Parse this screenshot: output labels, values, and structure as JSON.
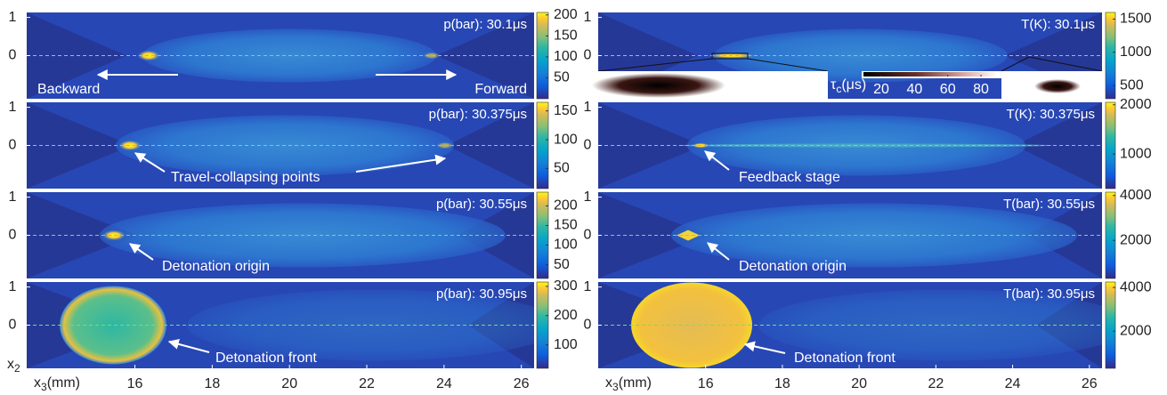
{
  "x_axis": {
    "label": {
      "base": "x",
      "sub": "3",
      "unit": "(mm)"
    },
    "ticks": [
      16,
      18,
      20,
      22,
      24,
      26
    ],
    "lim": [
      13.2,
      26.33
    ]
  },
  "y_axis": {
    "label": {
      "base": "x",
      "sub": "2"
    },
    "ticks": [
      0,
      1
    ],
    "lim": [
      -1.13,
      1.13
    ]
  },
  "left_column": [
    {
      "label": "p(bar): 30.1μs",
      "colorbar": {
        "ticks": [
          50,
          100,
          150,
          200
        ],
        "lim": [
          0,
          206
        ]
      },
      "annotations": [
        "Backward",
        "Forward"
      ]
    },
    {
      "label": "p(bar): 30.375μs",
      "colorbar": {
        "ticks": [
          50,
          100,
          150
        ],
        "lim": [
          15,
          165
        ]
      },
      "annotations": [
        "Travel-collapsing points"
      ]
    },
    {
      "label": "p(bar): 30.55μs",
      "colorbar": {
        "ticks": [
          50,
          100,
          150,
          200
        ],
        "lim": [
          15,
          235
        ]
      },
      "annotations": [
        "Detonation origin"
      ]
    },
    {
      "label": "p(bar): 30.95μs",
      "colorbar": {
        "ticks": [
          100,
          200,
          300
        ],
        "lim": [
          20,
          315
        ]
      },
      "annotations": [
        "Detonation front"
      ]
    }
  ],
  "right_column": [
    {
      "label": "T(K): 30.1μs",
      "colorbar": {
        "ticks": [
          500,
          1000,
          1500
        ],
        "lim": [
          300,
          1600
        ]
      },
      "annotations": []
    },
    {
      "label": "T(K): 30.375μs",
      "colorbar": {
        "ticks": [
          1000,
          2000
        ],
        "lim": [
          300,
          2050
        ]
      },
      "annotations": [
        "Feedback stage"
      ]
    },
    {
      "label": "T(bar): 30.55μs",
      "colorbar": {
        "ticks": [
          2000,
          4000
        ],
        "lim": [
          300,
          4150
        ]
      },
      "annotations": [
        "Detonation origin"
      ]
    },
    {
      "label": "T(bar): 30.95μs",
      "colorbar": {
        "ticks": [
          2000,
          4000
        ],
        "lim": [
          300,
          4250
        ]
      },
      "annotations": [
        "Detonation front"
      ]
    }
  ],
  "inset": {
    "label": {
      "base": "τ",
      "sub": "c",
      "unit": "(μs)"
    },
    "ticks": [
      20,
      40,
      60,
      80
    ],
    "lim": [
      9.3,
      89.6
    ]
  }
}
